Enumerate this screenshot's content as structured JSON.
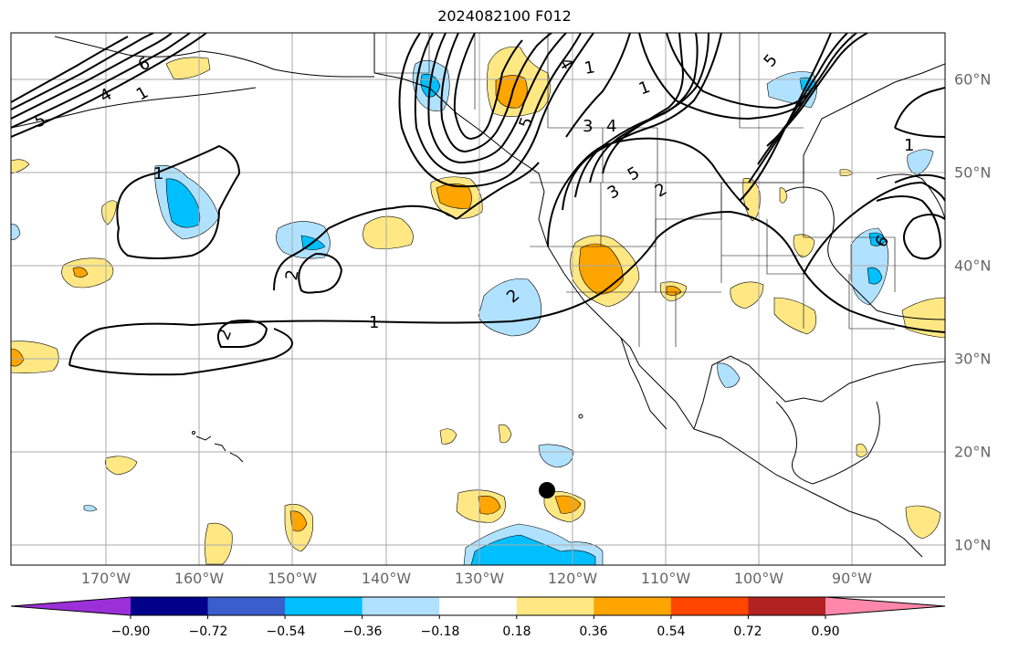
{
  "title": "2024082100 F012",
  "map": {
    "lon_labels": [
      "170°W",
      "160°W",
      "150°W",
      "140°W",
      "130°W",
      "120°W",
      "110°W",
      "100°W",
      "90°W"
    ],
    "lat_labels": [
      "60°N",
      "50°N",
      "40°N",
      "30°N",
      "20°N",
      "10°N"
    ],
    "contour_labels": [
      "1",
      "2",
      "2",
      "1",
      "2",
      "1",
      "3",
      "4",
      "5",
      "6",
      "4",
      "5",
      "5",
      "1",
      "2",
      "3",
      "4",
      "5",
      "6",
      "1",
      "1"
    ],
    "marker": "storm-center-dot"
  },
  "colorbar": {
    "ticks": [
      "−0.90",
      "−0.72",
      "−0.54",
      "−0.36",
      "−0.18",
      "0.18",
      "0.36",
      "0.54",
      "0.72",
      "0.90"
    ],
    "colors": [
      "#9b30d9",
      "#00008b",
      "#3a5fcd",
      "#00bfff",
      "#b0e2ff",
      "#ffffff",
      "#ffe884",
      "#ffa500",
      "#ff4500",
      "#b22222",
      "#ff88aa"
    ],
    "extend": "both"
  },
  "colors": {
    "pos_light": "#ffe884",
    "pos_mid": "#ffa500",
    "neg_light": "#b0e2ff",
    "neg_mid": "#00bfff",
    "grid": "#aaaaaa",
    "contour": "#000000"
  }
}
